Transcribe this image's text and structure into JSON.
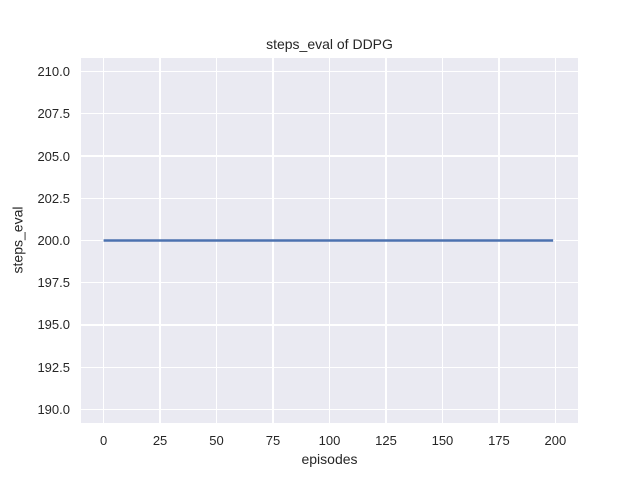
{
  "chart_data": {
    "type": "line",
    "title": "steps_eval of DDPG",
    "xlabel": "episodes",
    "ylabel": "steps_eval",
    "xlim": [
      -10,
      210
    ],
    "ylim": [
      189.2,
      210.8
    ],
    "xticks": [
      0,
      25,
      50,
      75,
      100,
      125,
      150,
      175,
      200
    ],
    "xtick_labels": [
      "0",
      "25",
      "50",
      "75",
      "100",
      "125",
      "150",
      "175",
      "200"
    ],
    "yticks": [
      190.0,
      192.5,
      195.0,
      197.5,
      200.0,
      202.5,
      205.0,
      207.5,
      210.0
    ],
    "ytick_labels": [
      "190.0",
      "192.5",
      "195.0",
      "197.5",
      "200.0",
      "202.5",
      "205.0",
      "207.5",
      "210.0"
    ],
    "grid": true,
    "legend": null,
    "series": [
      {
        "name": "steps_eval",
        "x": [
          0,
          199
        ],
        "y": [
          200,
          200
        ],
        "color": "#4c72b0"
      }
    ],
    "colors": {
      "figure_bg": "#ffffff",
      "axes_bg": "#eaeaf2",
      "grid": "#ffffff",
      "text": "#262626",
      "line": "#4c72b0"
    }
  }
}
